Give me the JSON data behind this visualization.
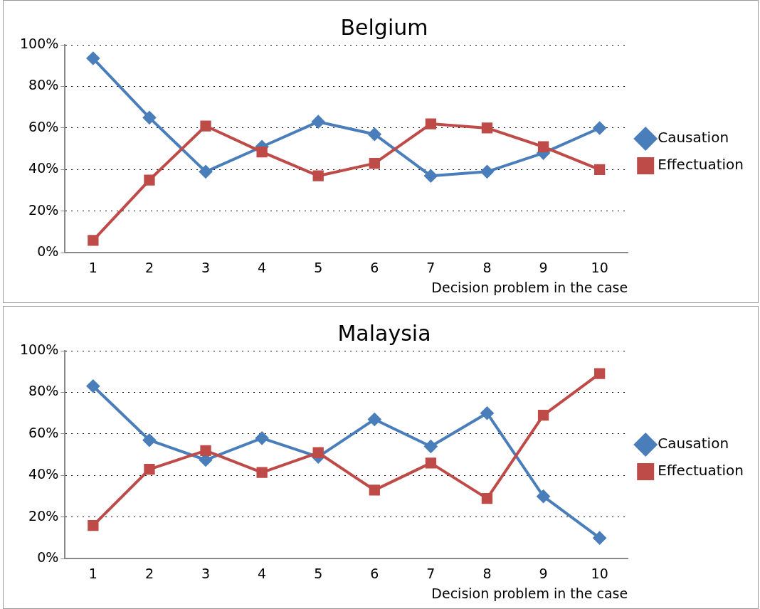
{
  "chart_data": [
    {
      "type": "line",
      "title": "Belgium",
      "xlabel": "Decision problem in the case",
      "categories": [
        "1",
        "2",
        "3",
        "4",
        "5",
        "6",
        "7",
        "8",
        "9",
        "10"
      ],
      "series": [
        {
          "name": "Causation",
          "color": "#4a7ebb",
          "marker": "diamond",
          "values": [
            93.5,
            65,
            39,
            51,
            63,
            57,
            37,
            39,
            48,
            60
          ]
        },
        {
          "name": "Effectuation",
          "color": "#be4b48",
          "marker": "square",
          "values": [
            6,
            35,
            61,
            48.5,
            37,
            43,
            62,
            60,
            51,
            40
          ]
        }
      ],
      "ylim": [
        0,
        100
      ],
      "yticks": [
        {
          "value": 0,
          "label": "0%"
        },
        {
          "value": 20,
          "label": "20%"
        },
        {
          "value": 40,
          "label": "40%"
        },
        {
          "value": 60,
          "label": "60%"
        },
        {
          "value": 80,
          "label": "80%"
        },
        {
          "value": 100,
          "label": "100%"
        }
      ],
      "grid": "y",
      "legend": "right",
      "line_style": "solid"
    },
    {
      "type": "line",
      "title": "Malaysia",
      "xlabel": "Decision problem in the case",
      "categories": [
        "1",
        "2",
        "3",
        "4",
        "5",
        "6",
        "7",
        "8",
        "9",
        "10"
      ],
      "series": [
        {
          "name": "Causation",
          "color": "#4a7ebb",
          "marker": "diamond",
          "values": [
            83,
            57,
            47.5,
            58,
            49,
            67,
            54,
            70,
            30,
            10
          ]
        },
        {
          "name": "Effectuation",
          "color": "#be4b48",
          "marker": "square",
          "values": [
            16,
            43,
            52,
            41.5,
            51,
            33,
            46,
            29,
            69,
            89
          ]
        }
      ],
      "ylim": [
        0,
        100
      ],
      "yticks": [
        {
          "value": 0,
          "label": "0%"
        },
        {
          "value": 20,
          "label": "20%"
        },
        {
          "value": 40,
          "label": "40%"
        },
        {
          "value": 60,
          "label": "60%"
        },
        {
          "value": 80,
          "label": "80%"
        },
        {
          "value": 100,
          "label": "100%"
        }
      ],
      "grid": "y",
      "legend": "right",
      "line_style": "solid"
    }
  ]
}
